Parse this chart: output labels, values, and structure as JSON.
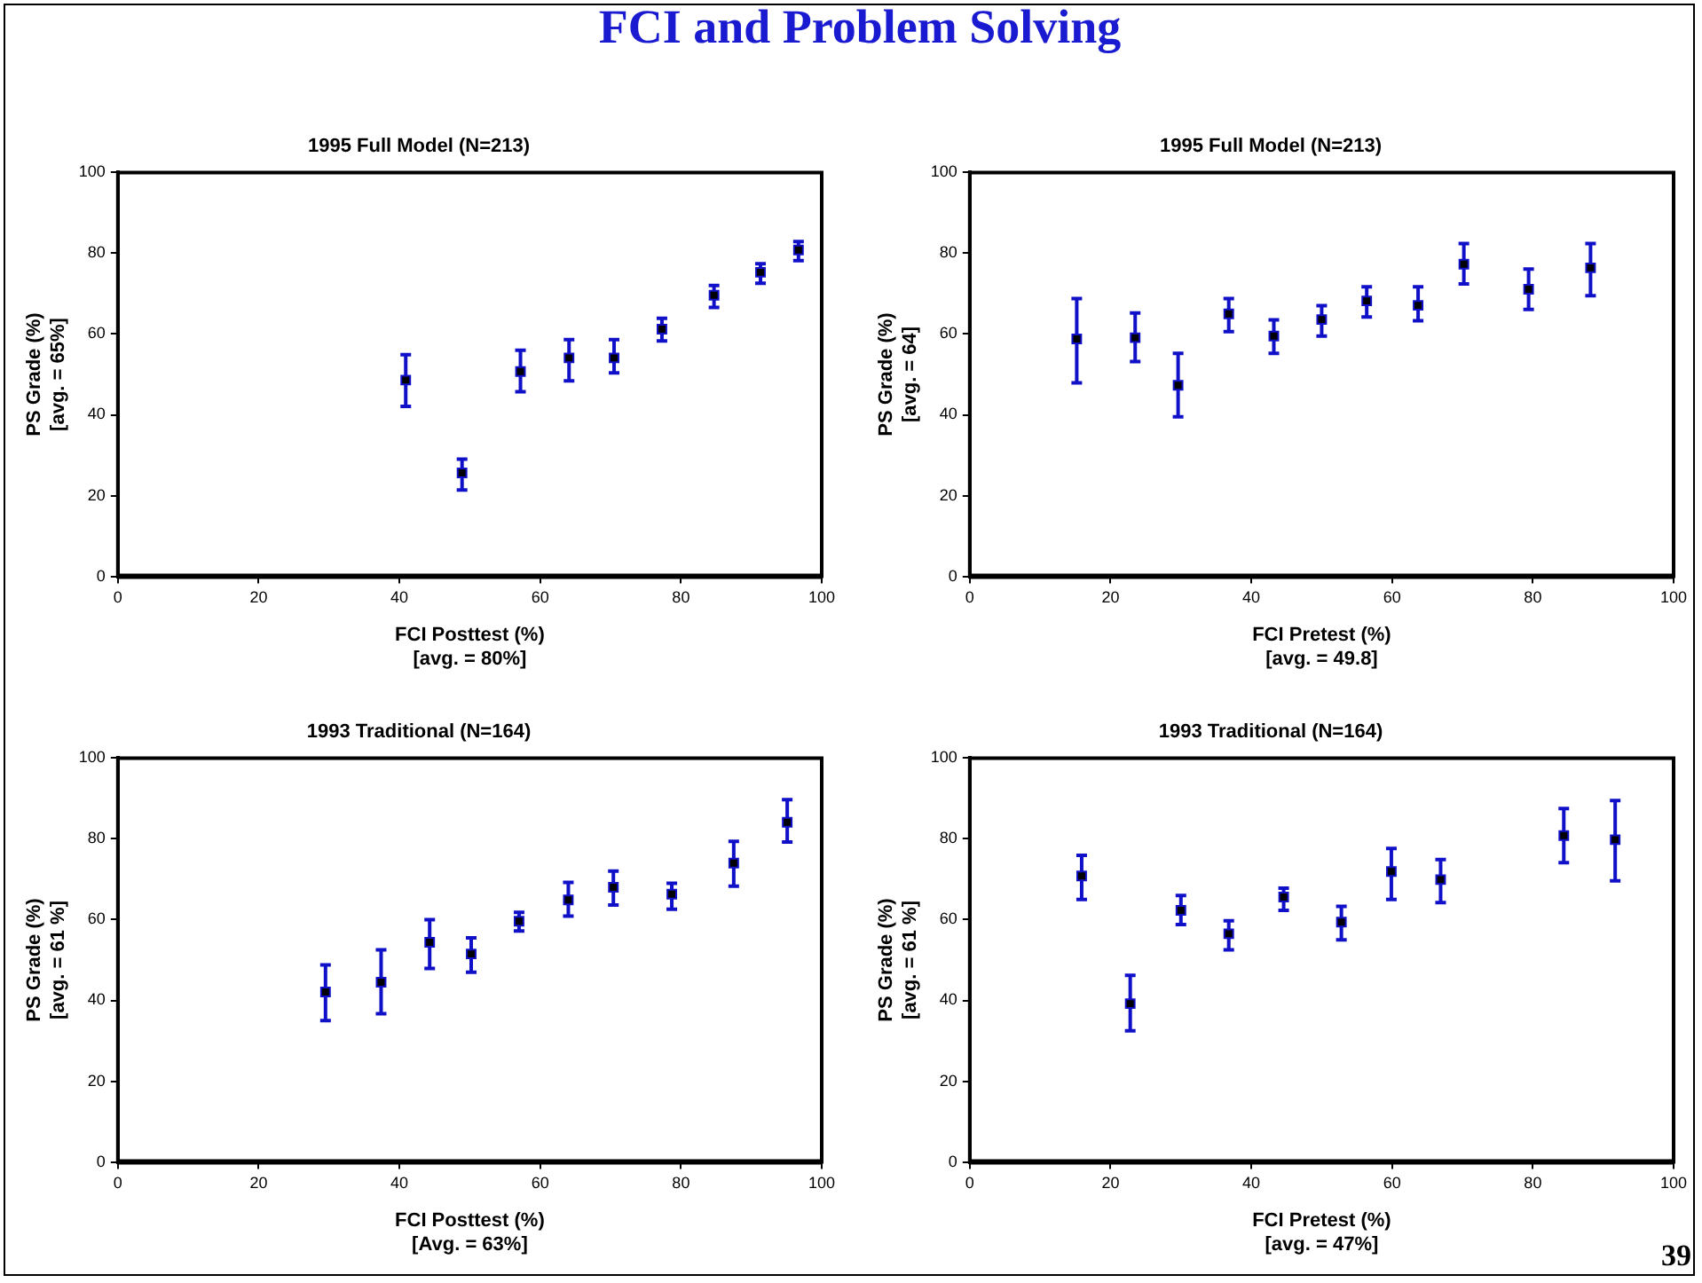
{
  "chart_data": [
    {
      "type": "scatter",
      "title": "1995 Full Model (N=213)",
      "xlabel": "FCI Posttest (%)\n[avg. = 80%]",
      "ylabel": "PS Grade (%)\n[avg. = 65%]",
      "annotations": [
        "FCI and Problem Solving"
      ],
      "xlim": [
        0,
        100
      ],
      "xticks": [
        0,
        20,
        40,
        60,
        80,
        100
      ],
      "ylim": [
        0,
        100
      ],
      "yticks": [
        0,
        20,
        40,
        60,
        80,
        100
      ],
      "grid": false,
      "legend": false,
      "marker": "square",
      "series": [
        {
          "color": "#1010c8",
          "x": [
            40.9,
            48.9,
            57.2,
            64.1,
            70.5,
            77.3,
            84.7,
            91.3,
            96.7
          ],
          "values": [
            48.6,
            25.6,
            50.7,
            54.1,
            54.1,
            61.2,
            69.6,
            75.3,
            80.8
          ],
          "errors": [
            [
              42.1,
              54.9
            ],
            [
              21.4,
              29
            ],
            [
              45.7,
              56
            ],
            [
              48.4,
              58.6
            ],
            [
              50.4,
              58.6
            ],
            [
              58.3,
              63.9
            ],
            [
              66.6,
              72
            ],
            [
              72.6,
              77.4
            ],
            [
              78.2,
              82.9
            ]
          ]
        }
      ]
    },
    {
      "type": "scatter",
      "title": "1995 Full Model (N=213)",
      "xlabel": "FCI Pretest (%)\n[avg. = 49.8]",
      "ylabel": "PS Grade (%)\n[avg. = 64]",
      "xlim": [
        0,
        100
      ],
      "xticks": [
        0,
        20,
        40,
        60,
        80,
        100
      ],
      "ylim": [
        0,
        100
      ],
      "yticks": [
        0,
        20,
        40,
        60,
        80,
        100
      ],
      "grid": false,
      "legend": false,
      "marker": "square",
      "series": [
        {
          "color": "#1010c8",
          "x": [
            15.2,
            23.5,
            29.6,
            36.8,
            43.2,
            50,
            56.4,
            63.7,
            70.2,
            79.4,
            88.2
          ],
          "values": [
            58.8,
            59.1,
            47.3,
            65,
            59.5,
            63.6,
            68.2,
            67.1,
            77.3,
            71.1,
            76.4
          ],
          "errors": [
            [
              47.9,
              68.8
            ],
            [
              53.2,
              65.2
            ],
            [
              39.5,
              55.2
            ],
            [
              60.6,
              68.8
            ],
            [
              55.2,
              63.5
            ],
            [
              59.5,
              67
            ],
            [
              64.2,
              71.7
            ],
            [
              63.3,
              71.7
            ],
            [
              72.4,
              82.4
            ],
            [
              66.1,
              76.1
            ],
            [
              69.5,
              82.4
            ]
          ]
        }
      ]
    },
    {
      "type": "scatter",
      "title": "1993 Traditional (N=164)",
      "xlabel": "FCI Posttest (%)\n[Avg. = 63%]",
      "ylabel": "PS Grade (%)\n[avg. = 61 %]",
      "xlim": [
        0,
        100
      ],
      "xticks": [
        0,
        20,
        40,
        60,
        80,
        100
      ],
      "ylim": [
        0,
        100
      ],
      "yticks": [
        0,
        20,
        40,
        60,
        80,
        100
      ],
      "grid": false,
      "legend": false,
      "marker": "square",
      "series": [
        {
          "color": "#1010c8",
          "x": [
            29.5,
            37.4,
            44.3,
            50.2,
            57,
            64,
            70.4,
            78.7,
            87.5,
            95.1
          ],
          "values": [
            42.1,
            44.5,
            54.4,
            51.5,
            59.6,
            64.9,
            68,
            66.3,
            74,
            84.1
          ],
          "errors": [
            [
              35,
              48.8
            ],
            [
              36.7,
              52.5
            ],
            [
              47.9,
              60
            ],
            [
              47,
              55.5
            ],
            [
              57.2,
              61.8
            ],
            [
              60.9,
              69.2
            ],
            [
              63.6,
              72
            ],
            [
              62.6,
              69
            ],
            [
              68.3,
              79.4
            ],
            [
              79.2,
              89.7
            ]
          ]
        }
      ]
    },
    {
      "type": "scatter",
      "title": "1993 Traditional (N=164)",
      "xlabel": "FCI Pretest (%)\n[avg. = 47%]",
      "ylabel": "PS Grade (%)\n[avg. = 61 %]",
      "annotations": [
        "39"
      ],
      "xlim": [
        0,
        100
      ],
      "xticks": [
        0,
        20,
        40,
        60,
        80,
        100
      ],
      "ylim": [
        0,
        100
      ],
      "yticks": [
        0,
        20,
        40,
        60,
        80,
        100
      ],
      "grid": false,
      "legend": false,
      "marker": "square",
      "series": [
        {
          "color": "#1010c8",
          "x": [
            15.9,
            22.8,
            30,
            36.8,
            44.6,
            52.8,
            59.9,
            66.9,
            84.4,
            91.7
          ],
          "values": [
            70.8,
            39.2,
            62.3,
            56.5,
            65.6,
            59.4,
            71.9,
            69.9,
            80.8,
            79.8
          ],
          "errors": [
            [
              65,
              75.9
            ],
            [
              32.5,
              46.2
            ],
            [
              58.8,
              66
            ],
            [
              52.5,
              59.7
            ],
            [
              62.3,
              67.8
            ],
            [
              55,
              63.3
            ],
            [
              65,
              77.6
            ],
            [
              64.2,
              74.9
            ],
            [
              74.1,
              87.5
            ],
            [
              69.6,
              89.5
            ]
          ]
        }
      ]
    }
  ]
}
